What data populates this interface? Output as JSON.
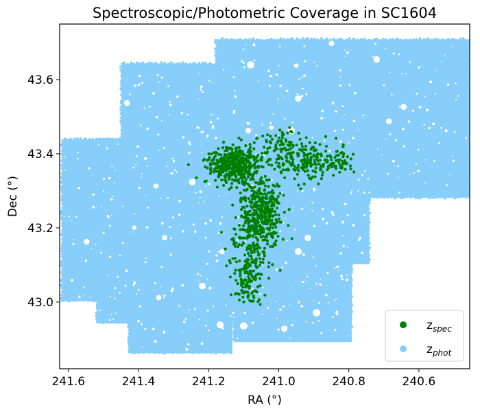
{
  "chart_data": {
    "type": "scatter",
    "title": "Spectroscopic/Photometric Coverage in SC1604",
    "xlabel": "RA (°)",
    "ylabel": "Dec (°)",
    "xlim": [
      241.625,
      240.455
    ],
    "ylim": [
      42.82,
      43.75
    ],
    "x_inverted": true,
    "xticks": [
      241.6,
      241.4,
      241.2,
      241.0,
      240.8,
      240.6
    ],
    "xtick_labels": [
      "241.6",
      "241.4",
      "241.2",
      "241.0",
      "240.8",
      "240.6"
    ],
    "yticks": [
      43.0,
      43.2,
      43.4,
      43.6
    ],
    "ytick_labels": [
      "43.0",
      "43.2",
      "43.4",
      "43.6"
    ],
    "grid": false,
    "legend_position": "lower-right",
    "series": [
      {
        "name": "z",
        "name_subscript": "spec",
        "color": "#008000",
        "marker": "dot",
        "clusters": [
          {
            "ra": 241.13,
            "dec": 43.37,
            "sigma_ra": 0.035,
            "sigma_dec": 0.025,
            "n": 420
          },
          {
            "ra": 241.05,
            "dec": 43.24,
            "sigma_ra": 0.03,
            "sigma_dec": 0.05,
            "n": 380
          },
          {
            "ra": 241.08,
            "dec": 43.15,
            "sigma_ra": 0.03,
            "sigma_dec": 0.06,
            "n": 140
          },
          {
            "ra": 241.09,
            "dec": 43.06,
            "sigma_ra": 0.02,
            "sigma_dec": 0.03,
            "n": 90
          },
          {
            "ra": 240.93,
            "dec": 43.38,
            "sigma_ra": 0.05,
            "sigma_dec": 0.03,
            "n": 180
          },
          {
            "ra": 240.84,
            "dec": 43.38,
            "sigma_ra": 0.03,
            "sigma_dec": 0.02,
            "n": 45
          },
          {
            "ra": 241.0,
            "dec": 43.42,
            "sigma_ra": 0.03,
            "sigma_dec": 0.03,
            "n": 60
          }
        ]
      },
      {
        "name": "z",
        "name_subscript": "phot",
        "color": "#87CEFA",
        "marker": "dot",
        "coverage_regions": [
          {
            "ra_min": 241.45,
            "ra_max": 240.455,
            "dec_min": 43.28,
            "dec_max": 43.645
          },
          {
            "ra_min": 241.18,
            "ra_max": 240.455,
            "dec_min": 43.28,
            "dec_max": 43.71
          },
          {
            "ra_min": 241.62,
            "ra_max": 241.13,
            "dec_min": 43.0,
            "dec_max": 43.44
          },
          {
            "ra_min": 241.52,
            "ra_max": 241.13,
            "dec_min": 42.94,
            "dec_max": 43.44
          },
          {
            "ra_min": 241.45,
            "ra_max": 240.79,
            "dec_min": 42.95,
            "dec_max": 43.63
          },
          {
            "ra_min": 241.43,
            "ra_max": 241.13,
            "dec_min": 42.86,
            "dec_max": 43.0
          },
          {
            "ra_min": 241.13,
            "ra_max": 240.79,
            "dec_min": 42.89,
            "dec_max": 43.1
          },
          {
            "ra_min": 241.0,
            "ra_max": 240.74,
            "dec_min": 43.1,
            "dec_max": 43.3
          }
        ]
      }
    ]
  }
}
